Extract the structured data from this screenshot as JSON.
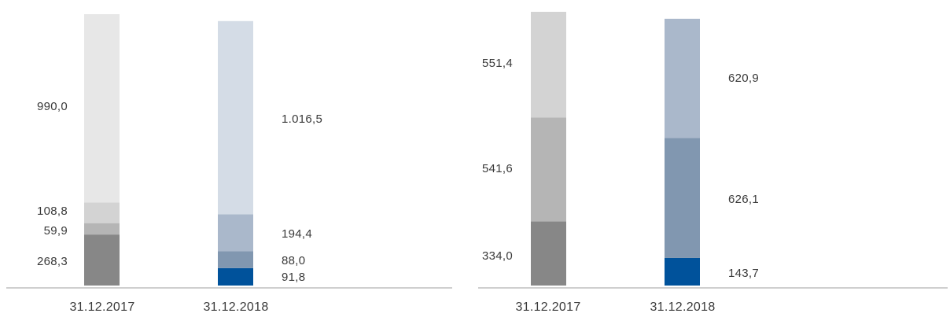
{
  "colors": {
    "baseline": "#bfbfbf",
    "label": "#3a3a3a"
  },
  "chart_data": [
    {
      "type": "bar",
      "stacked": true,
      "categories": [
        "31.12.2017",
        "31.12.2018"
      ],
      "legend": "none",
      "grid": false,
      "bars": [
        {
          "category": "31.12.2017",
          "segments": [
            {
              "value": 268.3,
              "label": "268,3",
              "color": "#878787"
            },
            {
              "value": 59.9,
              "label": "59,9",
              "color": "#b5b5b5"
            },
            {
              "value": 108.8,
              "label": "108,8",
              "color": "#d3d3d3"
            },
            {
              "value": 990.0,
              "label": "990,0",
              "color": "#e7e7e7"
            }
          ]
        },
        {
          "category": "31.12.2018",
          "segments": [
            {
              "value": 91.8,
              "label": "91,8",
              "color": "#00529b"
            },
            {
              "value": 88.0,
              "label": "88,0",
              "color": "#8197b0"
            },
            {
              "value": 194.4,
              "label": "194,4",
              "color": "#aab8cb"
            },
            {
              "value": 1016.5,
              "label": "1.016,5",
              "color": "#d4dce6"
            }
          ]
        }
      ]
    },
    {
      "type": "bar",
      "stacked": true,
      "categories": [
        "31.12.2017",
        "31.12.2018"
      ],
      "legend": "none",
      "grid": false,
      "bars": [
        {
          "category": "31.12.2017",
          "segments": [
            {
              "value": 334.0,
              "label": "334,0",
              "color": "#878787"
            },
            {
              "value": 541.6,
              "label": "541,6",
              "color": "#b5b5b5"
            },
            {
              "value": 551.4,
              "label": "551,4",
              "color": "#d3d3d3"
            }
          ]
        },
        {
          "category": "31.12.2018",
          "segments": [
            {
              "value": 143.7,
              "label": "143,7",
              "color": "#00529b"
            },
            {
              "value": 626.1,
              "label": "626,1",
              "color": "#8197b0"
            },
            {
              "value": 620.9,
              "label": "620,9",
              "color": "#aab8cb"
            }
          ]
        }
      ]
    }
  ]
}
